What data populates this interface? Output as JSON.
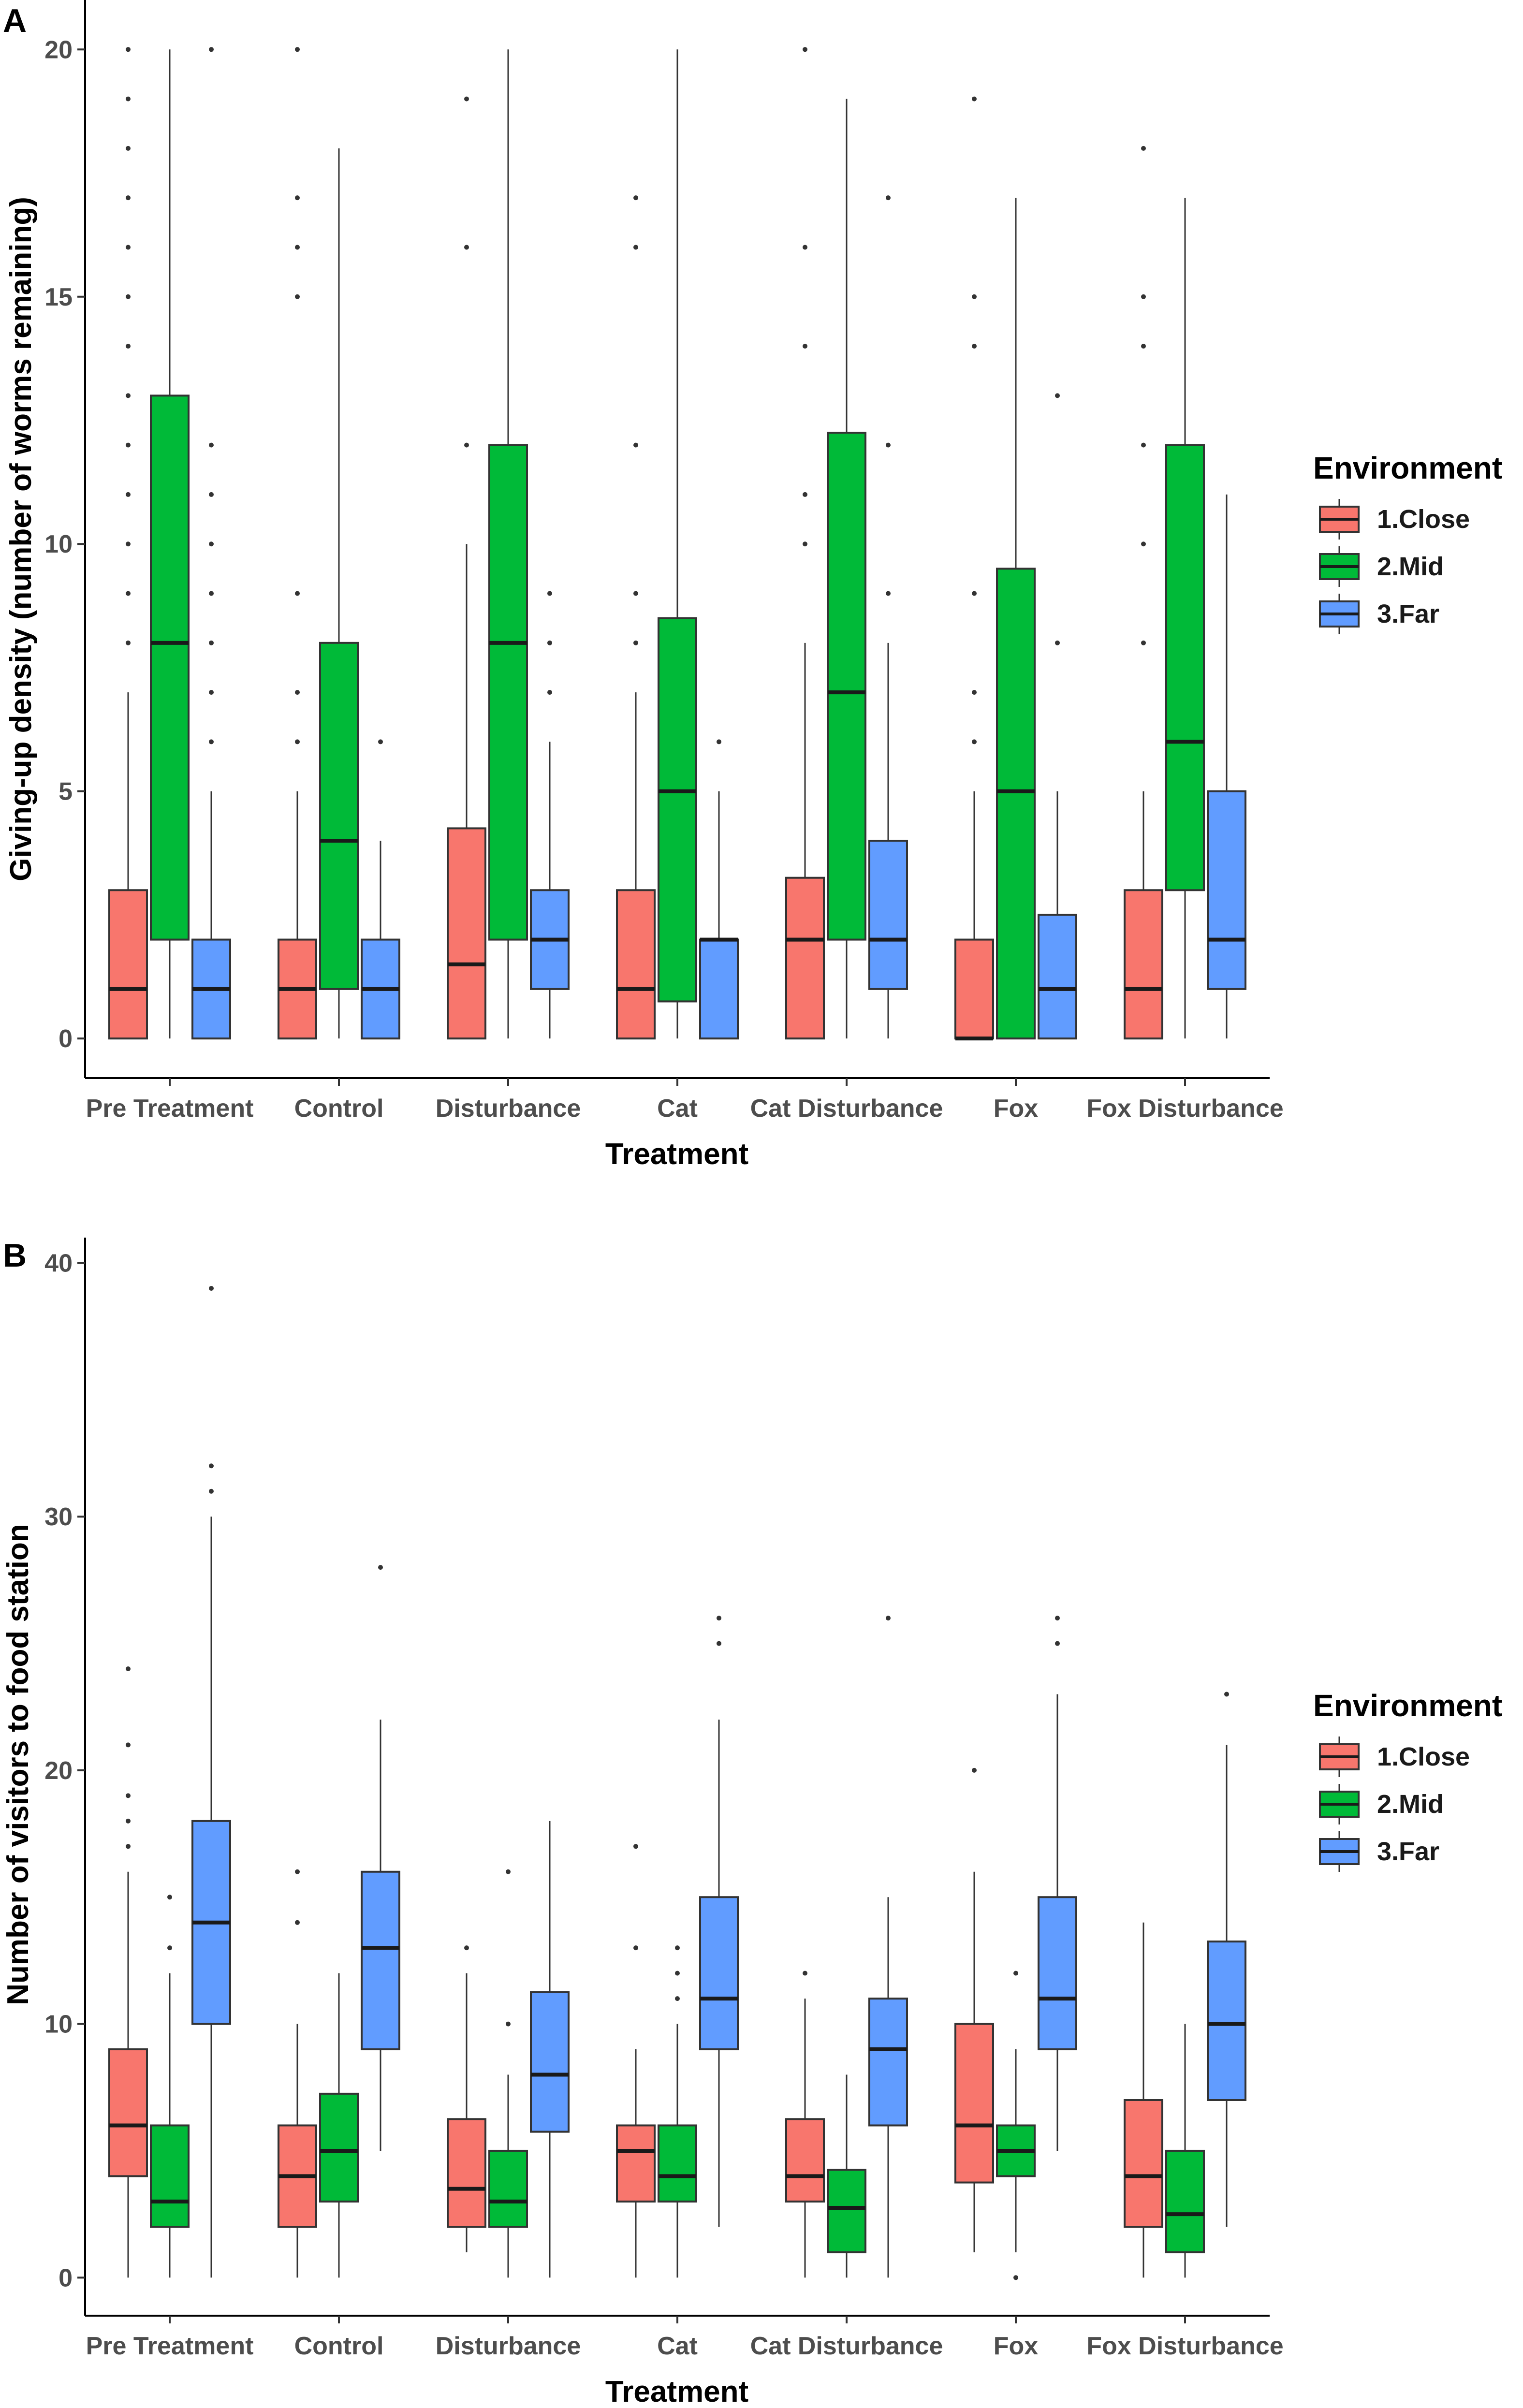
{
  "colors": {
    "close": "#F8766D",
    "mid": "#00BA38",
    "far": "#619CFF"
  },
  "chart_data": [
    {
      "panel": "A",
      "type": "box",
      "ylabel": "Giving-up density (number of worms remaining)",
      "xlabel": "Treatment",
      "ylim": [
        -0.8,
        21
      ],
      "yticks": [
        0,
        5,
        10,
        15,
        20
      ],
      "categories": [
        "Pre Treatment",
        "Control",
        "Disturbance",
        "Cat",
        "Cat Disturbance",
        "Fox",
        "Fox Disturbance"
      ],
      "legend": {
        "title": "Environment",
        "items": [
          "1.Close",
          "2.Mid",
          "3.Far"
        ]
      },
      "series": [
        {
          "name": "1.Close",
          "boxes": [
            {
              "min": 0,
              "q1": 0,
              "median": 1,
              "q3": 3,
              "max": 7,
              "outliers": [
                8,
                9,
                10,
                11,
                12,
                13,
                14,
                15,
                16,
                17,
                18,
                19,
                20
              ]
            },
            {
              "min": 0,
              "q1": 0,
              "median": 1,
              "q3": 2,
              "max": 5,
              "outliers": [
                6,
                7,
                9,
                15,
                16,
                17,
                20
              ]
            },
            {
              "min": 0,
              "q1": 0,
              "median": 1.5,
              "q3": 4.25,
              "max": 10,
              "outliers": [
                12,
                16,
                19
              ]
            },
            {
              "min": 0,
              "q1": 0,
              "median": 1,
              "q3": 3,
              "max": 7,
              "outliers": [
                8,
                9,
                12,
                16,
                17
              ]
            },
            {
              "min": 0,
              "q1": 0,
              "median": 2,
              "q3": 3.25,
              "max": 8,
              "outliers": [
                10,
                11,
                14,
                16,
                20
              ]
            },
            {
              "min": 0,
              "q1": 0,
              "median": 0,
              "q3": 2,
              "max": 5,
              "outliers": [
                6,
                7,
                9,
                14,
                15,
                19
              ]
            },
            {
              "min": 0,
              "q1": 0,
              "median": 1,
              "q3": 3,
              "max": 5,
              "outliers": [
                8,
                10,
                12,
                14,
                15,
                18
              ]
            }
          ]
        },
        {
          "name": "2.Mid",
          "boxes": [
            {
              "min": 0,
              "q1": 2,
              "median": 8,
              "q3": 13,
              "max": 20,
              "outliers": []
            },
            {
              "min": 0,
              "q1": 1,
              "median": 4,
              "q3": 8,
              "max": 18,
              "outliers": []
            },
            {
              "min": 0,
              "q1": 2,
              "median": 8,
              "q3": 12,
              "max": 20,
              "outliers": []
            },
            {
              "min": 0,
              "q1": 0.75,
              "median": 5,
              "q3": 8.5,
              "max": 20,
              "outliers": []
            },
            {
              "min": 0,
              "q1": 2,
              "median": 7,
              "q3": 12.25,
              "max": 19,
              "outliers": []
            },
            {
              "min": 0,
              "q1": 0,
              "median": 5,
              "q3": 9.5,
              "max": 17,
              "outliers": []
            },
            {
              "min": 0,
              "q1": 3,
              "median": 6,
              "q3": 12,
              "max": 17,
              "outliers": []
            }
          ]
        },
        {
          "name": "3.Far",
          "boxes": [
            {
              "min": 0,
              "q1": 0,
              "median": 1,
              "q3": 2,
              "max": 5,
              "outliers": [
                6,
                7,
                8,
                9,
                10,
                11,
                12,
                20
              ]
            },
            {
              "min": 0,
              "q1": 0,
              "median": 1,
              "q3": 2,
              "max": 4,
              "outliers": [
                6
              ]
            },
            {
              "min": 0,
              "q1": 1,
              "median": 2,
              "q3": 3,
              "max": 6,
              "outliers": [
                7,
                8,
                9
              ]
            },
            {
              "min": 0,
              "q1": 0,
              "median": 2,
              "q3": 2,
              "max": 5,
              "outliers": [
                6
              ]
            },
            {
              "min": 0,
              "q1": 1,
              "median": 2,
              "q3": 4,
              "max": 8,
              "outliers": [
                9,
                12,
                17
              ]
            },
            {
              "min": 0,
              "q1": 0,
              "median": 1,
              "q3": 2.5,
              "max": 5,
              "outliers": [
                8,
                13
              ]
            },
            {
              "min": 0,
              "q1": 1,
              "median": 2,
              "q3": 5,
              "max": 11,
              "outliers": []
            }
          ]
        }
      ]
    },
    {
      "panel": "B",
      "type": "box",
      "ylabel": "Number of visitors to food station",
      "xlabel": "Treatment",
      "ylim": [
        -1.5,
        41
      ],
      "yticks": [
        0,
        10,
        20,
        30,
        40
      ],
      "categories": [
        "Pre Treatment",
        "Control",
        "Disturbance",
        "Cat",
        "Cat Disturbance",
        "Fox",
        "Fox Disturbance"
      ],
      "legend": {
        "title": "Environment",
        "items": [
          "1.Close",
          "2.Mid",
          "3.Far"
        ]
      },
      "series": [
        {
          "name": "1.Close",
          "boxes": [
            {
              "min": 0,
              "q1": 4,
              "median": 6,
              "q3": 9,
              "max": 16,
              "outliers": [
                17,
                18,
                19,
                21,
                24
              ]
            },
            {
              "min": 0,
              "q1": 2,
              "median": 4,
              "q3": 6,
              "max": 10,
              "outliers": [
                14,
                16
              ]
            },
            {
              "min": 1,
              "q1": 2,
              "median": 3.5,
              "q3": 6.25,
              "max": 12,
              "outliers": [
                13
              ]
            },
            {
              "min": 0,
              "q1": 3,
              "median": 5,
              "q3": 6,
              "max": 9,
              "outliers": [
                13,
                17
              ]
            },
            {
              "min": 0,
              "q1": 3,
              "median": 4,
              "q3": 6.25,
              "max": 11,
              "outliers": [
                12
              ]
            },
            {
              "min": 1,
              "q1": 3.75,
              "median": 6,
              "q3": 10,
              "max": 16,
              "outliers": [
                20
              ]
            },
            {
              "min": 0,
              "q1": 2,
              "median": 4,
              "q3": 7,
              "max": 14,
              "outliers": []
            }
          ]
        },
        {
          "name": "2.Mid",
          "boxes": [
            {
              "min": 0,
              "q1": 2,
              "median": 3,
              "q3": 6,
              "max": 12,
              "outliers": [
                13,
                15
              ]
            },
            {
              "min": 0,
              "q1": 3,
              "median": 5,
              "q3": 7.25,
              "max": 12,
              "outliers": []
            },
            {
              "min": 0,
              "q1": 2,
              "median": 3,
              "q3": 5,
              "max": 8,
              "outliers": [
                10,
                16
              ]
            },
            {
              "min": 0,
              "q1": 3,
              "median": 4,
              "q3": 6,
              "max": 10,
              "outliers": [
                11,
                12,
                13
              ]
            },
            {
              "min": 0,
              "q1": 1,
              "median": 2.75,
              "q3": 4.25,
              "max": 8,
              "outliers": []
            },
            {
              "min": 1,
              "q1": 4,
              "median": 5,
              "q3": 6,
              "max": 9,
              "outliers": [
                0,
                12
              ]
            },
            {
              "min": 0,
              "q1": 1,
              "median": 2.5,
              "q3": 5,
              "max": 10,
              "outliers": []
            }
          ]
        },
        {
          "name": "3.Far",
          "boxes": [
            {
              "min": 0,
              "q1": 10,
              "median": 14,
              "q3": 18,
              "max": 30,
              "outliers": [
                31,
                32,
                39
              ]
            },
            {
              "min": 5,
              "q1": 9,
              "median": 13,
              "q3": 16,
              "max": 22,
              "outliers": [
                28
              ]
            },
            {
              "min": 0,
              "q1": 5.75,
              "median": 8,
              "q3": 11.25,
              "max": 18,
              "outliers": []
            },
            {
              "min": 2,
              "q1": 9,
              "median": 11,
              "q3": 15,
              "max": 22,
              "outliers": [
                25,
                26
              ]
            },
            {
              "min": 0,
              "q1": 6,
              "median": 9,
              "q3": 11,
              "max": 15,
              "outliers": [
                26
              ]
            },
            {
              "min": 5,
              "q1": 9,
              "median": 11,
              "q3": 15,
              "max": 23,
              "outliers": [
                25,
                26
              ]
            },
            {
              "min": 2,
              "q1": 7,
              "median": 10,
              "q3": 13.25,
              "max": 21,
              "outliers": [
                23
              ]
            }
          ]
        }
      ]
    }
  ]
}
